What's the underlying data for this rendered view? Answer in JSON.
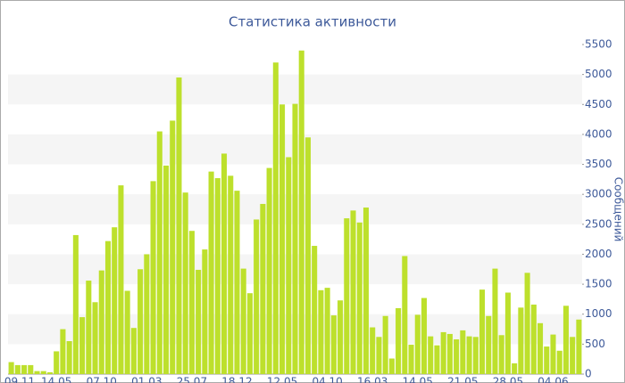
{
  "chart_data": {
    "type": "bar",
    "title": "Статистика активности",
    "y_label": "Сообщений",
    "categories": [
      "09.11",
      null,
      null,
      null,
      null,
      null,
      null,
      "14.05",
      null,
      null,
      null,
      null,
      null,
      null,
      "07.10",
      null,
      null,
      null,
      null,
      null,
      null,
      "01.03",
      null,
      null,
      null,
      null,
      null,
      null,
      "25.07",
      null,
      null,
      null,
      null,
      null,
      null,
      "18.12",
      null,
      null,
      null,
      null,
      null,
      null,
      "12.05",
      null,
      null,
      null,
      null,
      null,
      null,
      "04.10",
      null,
      null,
      null,
      null,
      null,
      null,
      "16.03",
      null,
      null,
      null,
      null,
      null,
      null,
      "14.05",
      null,
      null,
      null,
      null,
      null,
      null,
      "21.05",
      null,
      null,
      null,
      null,
      null,
      null,
      "28.05",
      null,
      null,
      null,
      null,
      null,
      null,
      "04.06",
      null,
      null,
      null,
      null
    ],
    "values": [
      200,
      150,
      150,
      150,
      50,
      50,
      30,
      380,
      750,
      550,
      2320,
      950,
      1560,
      1200,
      1730,
      2220,
      2450,
      3150,
      1390,
      770,
      1750,
      2000,
      3220,
      4050,
      3480,
      4230,
      4950,
      3030,
      2390,
      1740,
      2080,
      3380,
      3270,
      3680,
      3310,
      3060,
      1760,
      1350,
      2580,
      2840,
      3440,
      5200,
      4500,
      3620,
      4510,
      5400,
      3950,
      2140,
      1400,
      1440,
      980,
      1230,
      2600,
      2730,
      2530,
      2780,
      780,
      620,
      970,
      260,
      1100,
      1970,
      490,
      990,
      1270,
      630,
      480,
      700,
      670,
      580,
      730,
      630,
      620,
      1410,
      970,
      1760,
      650,
      1360,
      180,
      1110,
      1690,
      1160,
      850,
      460,
      660,
      390,
      1140,
      620,
      910
    ],
    "color": "#bde02c",
    "ylim": [
      0,
      5500
    ],
    "yticks": [
      0,
      500,
      1000,
      1500,
      2000,
      2500,
      3000,
      3500,
      4000,
      4500,
      5000,
      5500
    ],
    "grid": "bands",
    "y_axis_side": "right"
  }
}
